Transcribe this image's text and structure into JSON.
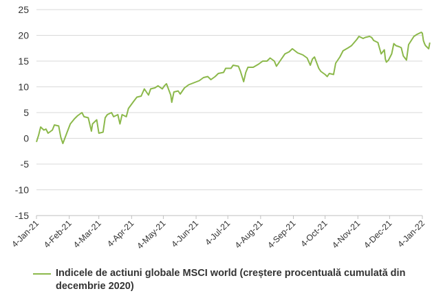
{
  "chart_data": {
    "type": "line",
    "ylim": [
      -15,
      25
    ],
    "yticks": [
      25,
      20,
      15,
      10,
      5,
      0,
      -5,
      -10,
      -15
    ],
    "grid": true,
    "x_ticks": [
      "4-Jan-21",
      "4-Feb-21",
      "4-Mar-21",
      "4-Apr-21",
      "4-May-21",
      "4-Jun-21",
      "4-Jul-21",
      "4-Aug-21",
      "4-Sep-21",
      "4-Oct-21",
      "4-Nov-21",
      "4-Dec-21",
      "4-Jan-22"
    ],
    "legend_position": "bottom",
    "series": [
      {
        "name": "Indicele de actiuni globale MSCI world (creștere procentuală cumulată din decembrie 2020)",
        "color": "#8bb84a",
        "points": [
          [
            "2021-01-04",
            -0.7
          ],
          [
            "2021-01-06",
            0.6
          ],
          [
            "2021-01-08",
            2.2
          ],
          [
            "2021-01-11",
            1.6
          ],
          [
            "2021-01-13",
            1.8
          ],
          [
            "2021-01-15",
            1.0
          ],
          [
            "2021-01-19",
            1.6
          ],
          [
            "2021-01-21",
            2.6
          ],
          [
            "2021-01-25",
            2.4
          ],
          [
            "2021-01-27",
            0.2
          ],
          [
            "2021-01-29",
            -1.0
          ],
          [
            "2021-02-02",
            1.2
          ],
          [
            "2021-02-05",
            2.8
          ],
          [
            "2021-02-09",
            3.8
          ],
          [
            "2021-02-12",
            4.4
          ],
          [
            "2021-02-16",
            5.0
          ],
          [
            "2021-02-18",
            4.2
          ],
          [
            "2021-02-22",
            4.0
          ],
          [
            "2021-02-25",
            1.4
          ],
          [
            "2021-02-26",
            2.8
          ],
          [
            "2021-03-02",
            3.6
          ],
          [
            "2021-03-04",
            1.0
          ],
          [
            "2021-03-08",
            1.2
          ],
          [
            "2021-03-10",
            4.0
          ],
          [
            "2021-03-12",
            4.6
          ],
          [
            "2021-03-16",
            5.0
          ],
          [
            "2021-03-18",
            4.2
          ],
          [
            "2021-03-22",
            4.6
          ],
          [
            "2021-03-24",
            2.8
          ],
          [
            "2021-03-26",
            4.6
          ],
          [
            "2021-03-30",
            4.2
          ],
          [
            "2021-04-01",
            5.8
          ],
          [
            "2021-04-06",
            7.2
          ],
          [
            "2021-04-09",
            8.0
          ],
          [
            "2021-04-13",
            8.2
          ],
          [
            "2021-04-16",
            9.6
          ],
          [
            "2021-04-20",
            8.4
          ],
          [
            "2021-04-22",
            9.6
          ],
          [
            "2021-04-26",
            9.8
          ],
          [
            "2021-04-29",
            10.2
          ],
          [
            "2021-05-03",
            9.6
          ],
          [
            "2021-05-05",
            10.2
          ],
          [
            "2021-05-07",
            10.6
          ],
          [
            "2021-05-11",
            8.4
          ],
          [
            "2021-05-12",
            7.0
          ],
          [
            "2021-05-14",
            9.0
          ],
          [
            "2021-05-18",
            9.2
          ],
          [
            "2021-05-20",
            8.6
          ],
          [
            "2021-05-24",
            9.8
          ],
          [
            "2021-05-28",
            10.4
          ],
          [
            "2021-06-02",
            10.8
          ],
          [
            "2021-06-07",
            11.2
          ],
          [
            "2021-06-11",
            11.8
          ],
          [
            "2021-06-15",
            12.0
          ],
          [
            "2021-06-18",
            11.4
          ],
          [
            "2021-06-22",
            12.0
          ],
          [
            "2021-06-25",
            12.6
          ],
          [
            "2021-06-30",
            12.8
          ],
          [
            "2021-07-02",
            13.6
          ],
          [
            "2021-07-07",
            13.6
          ],
          [
            "2021-07-09",
            14.2
          ],
          [
            "2021-07-14",
            14.0
          ],
          [
            "2021-07-16",
            13.0
          ],
          [
            "2021-07-19",
            11.0
          ],
          [
            "2021-07-21",
            12.8
          ],
          [
            "2021-07-23",
            13.8
          ],
          [
            "2021-07-28",
            13.8
          ],
          [
            "2021-08-02",
            14.4
          ],
          [
            "2021-08-06",
            15.0
          ],
          [
            "2021-08-10",
            15.0
          ],
          [
            "2021-08-13",
            15.6
          ],
          [
            "2021-08-17",
            15.0
          ],
          [
            "2021-08-19",
            14.0
          ],
          [
            "2021-08-23",
            15.2
          ],
          [
            "2021-08-27",
            16.4
          ],
          [
            "2021-08-31",
            16.8
          ],
          [
            "2021-09-03",
            17.4
          ],
          [
            "2021-09-08",
            16.6
          ],
          [
            "2021-09-13",
            16.2
          ],
          [
            "2021-09-17",
            15.6
          ],
          [
            "2021-09-20",
            14.2
          ],
          [
            "2021-09-22",
            15.4
          ],
          [
            "2021-09-24",
            15.8
          ],
          [
            "2021-09-28",
            13.6
          ],
          [
            "2021-09-30",
            13.0
          ],
          [
            "2021-10-04",
            12.4
          ],
          [
            "2021-10-06",
            12.0
          ],
          [
            "2021-10-08",
            12.6
          ],
          [
            "2021-10-12",
            12.4
          ],
          [
            "2021-10-14",
            14.6
          ],
          [
            "2021-10-18",
            15.8
          ],
          [
            "2021-10-21",
            17.0
          ],
          [
            "2021-10-26",
            17.6
          ],
          [
            "2021-10-29",
            18.0
          ],
          [
            "2021-11-03",
            19.2
          ],
          [
            "2021-11-05",
            19.8
          ],
          [
            "2021-11-09",
            19.4
          ],
          [
            "2021-11-11",
            19.6
          ],
          [
            "2021-11-15",
            19.8
          ],
          [
            "2021-11-17",
            19.6
          ],
          [
            "2021-11-19",
            19.0
          ],
          [
            "2021-11-23",
            18.6
          ],
          [
            "2021-11-26",
            16.4
          ],
          [
            "2021-11-29",
            17.2
          ],
          [
            "2021-11-30",
            15.4
          ],
          [
            "2021-12-01",
            14.8
          ],
          [
            "2021-12-03",
            15.2
          ],
          [
            "2021-12-06",
            16.4
          ],
          [
            "2021-12-08",
            18.4
          ],
          [
            "2021-12-10",
            18.0
          ],
          [
            "2021-12-13",
            17.8
          ],
          [
            "2021-12-15",
            17.6
          ],
          [
            "2021-12-17",
            16.0
          ],
          [
            "2021-12-20",
            15.2
          ],
          [
            "2021-12-22",
            18.2
          ],
          [
            "2021-12-27",
            19.8
          ],
          [
            "2021-12-30",
            20.2
          ],
          [
            "2022-01-03",
            20.6
          ],
          [
            "2022-01-04",
            20.4
          ],
          [
            "2022-01-05",
            19.0
          ],
          [
            "2022-01-06",
            18.4
          ],
          [
            "2022-01-07",
            18.0
          ],
          [
            "2022-01-10",
            17.4
          ],
          [
            "2022-01-11",
            18.6
          ]
        ]
      }
    ]
  }
}
